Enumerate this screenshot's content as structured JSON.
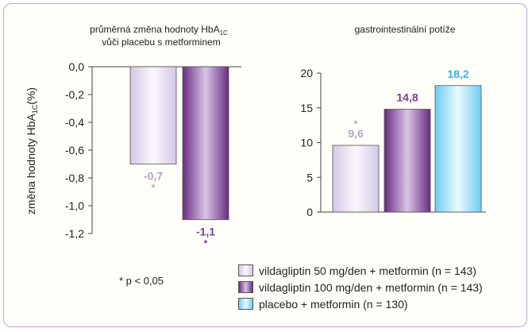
{
  "chart_data": [
    {
      "type": "bar",
      "title_line1": "průměrná změna hodnoty HbA",
      "title_sub": "1C",
      "title_line2": "vůči placebu s metforminem",
      "ylabel_main": "změna hodnoty HbA",
      "ylabel_sub": "1C",
      "ylabel_unit": "(%)",
      "ylim": [
        -1.2,
        0
      ],
      "yticks": [
        "0,0",
        "-0,2",
        "-0,4",
        "-0,6",
        "-0,8",
        "-1,0",
        "-1,2"
      ],
      "values": [
        -0.7,
        -1.1
      ],
      "value_labels": [
        "-0,7",
        "-1,1"
      ],
      "significance": [
        "*",
        "*"
      ],
      "series_colors": [
        "#b8a2cf",
        "#7a3d8f"
      ]
    },
    {
      "type": "bar",
      "title": "gastrointestinální potíže",
      "ylim": [
        0,
        20
      ],
      "yticks": [
        "20",
        "15",
        "10",
        "5",
        "0"
      ],
      "values": [
        9.6,
        14.8,
        18.2
      ],
      "value_labels": [
        "9,6",
        "14,8",
        "18,2"
      ],
      "significance": [
        "*",
        "",
        ""
      ],
      "series_colors": [
        "#b8a2cf",
        "#7a3d8f",
        "#35b3e6"
      ]
    }
  ],
  "legend": [
    {
      "label": "vildagliptin 50 mg/den + metformin (n = 143)",
      "color": "#e9e0f2"
    },
    {
      "label": "vildagliptin 100 mg/den + metformin (n = 143)",
      "color": "#9a5fb0"
    },
    {
      "label": "placebo + metformin (n = 130)",
      "color": "#bfe9fa"
    }
  ],
  "footnote": "* p < 0,05"
}
